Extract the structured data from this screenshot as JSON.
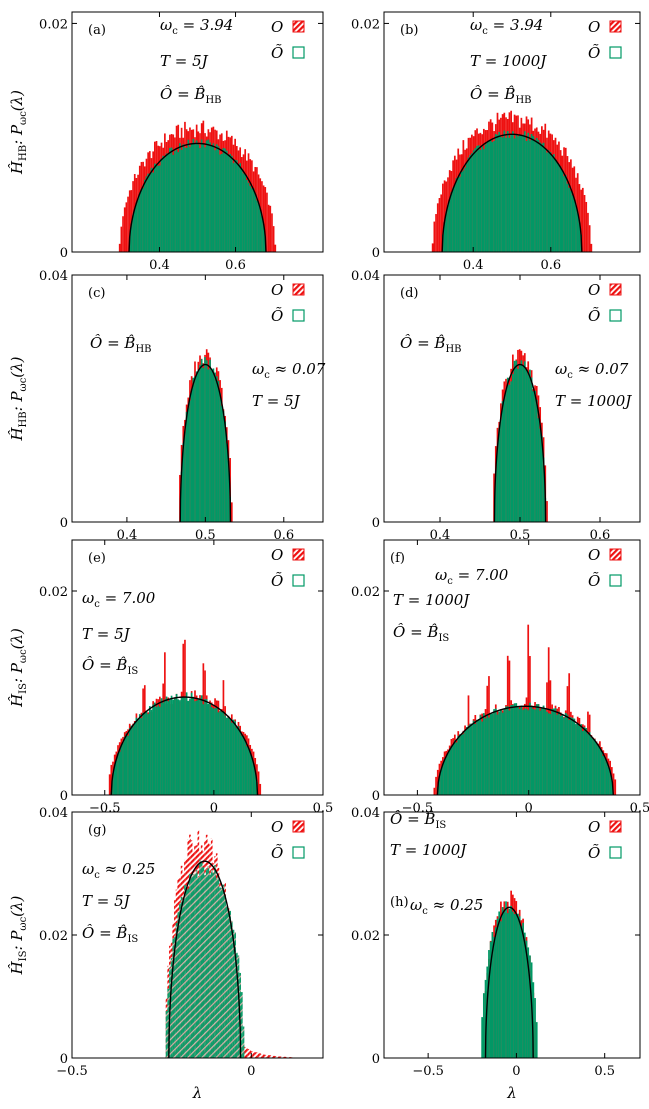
{
  "figure": {
    "colors": {
      "O": "#ee1111",
      "Otilde": "#009966",
      "curve": "#000000"
    },
    "row_ylabels": [
      "Ĥ_HB: P_ωc(λ)",
      "Ĥ_HB: P_ωc(λ)",
      "Ĥ_IS: P_ωc(λ)",
      "Ĥ_IS: P_ωc(λ)"
    ],
    "xlabel": "λ"
  },
  "chart_data": [
    {
      "type": "bar",
      "panel": "(a)",
      "annotations": [
        "ω_c = 3.94",
        "T = 5J",
        "Ô = B̂_HB"
      ],
      "legend": [
        "O",
        "Õ"
      ],
      "legend_position": "top-right",
      "xlim": [
        0.17,
        0.83
      ],
      "ylim": [
        0,
        0.021
      ],
      "xticks": [
        0.4,
        0.6
      ],
      "xtick_labels": [
        "0.4",
        "0.6"
      ],
      "yticks": [
        0,
        0.02
      ],
      "ytick_labels": [
        "0",
        "0.02"
      ],
      "series": [
        {
          "name": "O",
          "style": "histogram",
          "center": 0.5,
          "halfwidth": 0.205,
          "peak": 0.0108
        },
        {
          "name": "Õ",
          "style": "histogram",
          "center": 0.5,
          "halfwidth": 0.18,
          "peak": 0.0095
        },
        {
          "style": "curve",
          "center": 0.5,
          "halfwidth": 0.18,
          "peak": 0.0095
        }
      ]
    },
    {
      "type": "bar",
      "panel": "(b)",
      "annotations": [
        "ω_c = 3.94",
        "T = 1000J",
        "Ô = B̂_HB"
      ],
      "legend": [
        "O",
        "Õ"
      ],
      "legend_position": "top-right",
      "xlim": [
        0.17,
        0.83
      ],
      "ylim": [
        0,
        0.021
      ],
      "xticks": [
        0.4,
        0.6
      ],
      "xtick_labels": [
        "0.4",
        "0.6"
      ],
      "yticks": [
        0,
        0.02
      ],
      "ytick_labels": [
        "0",
        "0.02"
      ],
      "series": [
        {
          "name": "O",
          "style": "histogram",
          "center": 0.5,
          "halfwidth": 0.205,
          "peak": 0.0116
        },
        {
          "name": "Õ",
          "style": "histogram",
          "center": 0.5,
          "halfwidth": 0.18,
          "peak": 0.0103
        },
        {
          "style": "curve",
          "center": 0.5,
          "halfwidth": 0.18,
          "peak": 0.0103
        }
      ]
    },
    {
      "type": "bar",
      "panel": "(c)",
      "annotations": [
        "Ô = B̂_HB",
        "ω_c ≈ 0.07",
        "T = 5J"
      ],
      "legend": [
        "O",
        "Õ"
      ],
      "legend_position": "top-right",
      "xlim": [
        0.33,
        0.65
      ],
      "ylim": [
        0,
        0.04
      ],
      "xticks": [
        0.4,
        0.5,
        0.6
      ],
      "xtick_labels": [
        "0.4",
        "0.5",
        "0.6"
      ],
      "yticks": [
        0,
        0.04
      ],
      "ytick_labels": [
        "0",
        "0.04"
      ],
      "series": [
        {
          "name": "O",
          "style": "histogram",
          "center": 0.5,
          "halfwidth": 0.034,
          "peak": 0.0265
        },
        {
          "name": "Õ",
          "style": "histogram",
          "center": 0.5,
          "halfwidth": 0.032,
          "peak": 0.0255
        },
        {
          "style": "curve",
          "center": 0.5,
          "halfwidth": 0.032,
          "peak": 0.0255
        }
      ]
    },
    {
      "type": "bar",
      "panel": "(d)",
      "annotations": [
        "Ô = B̂_HB",
        "ω_c ≈ 0.07",
        "T = 1000J"
      ],
      "legend": [
        "O",
        "Õ"
      ],
      "legend_position": "top-right",
      "xlim": [
        0.33,
        0.65
      ],
      "ylim": [
        0,
        0.04
      ],
      "xticks": [
        0.4,
        0.5,
        0.6
      ],
      "xtick_labels": [
        "0.4",
        "0.5",
        "0.6"
      ],
      "yticks": [
        0,
        0.04
      ],
      "ytick_labels": [
        "0",
        "0.04"
      ],
      "series": [
        {
          "name": "O",
          "style": "histogram",
          "center": 0.5,
          "halfwidth": 0.034,
          "peak": 0.0265
        },
        {
          "name": "Õ",
          "style": "histogram",
          "center": 0.5,
          "halfwidth": 0.032,
          "peak": 0.0255
        },
        {
          "style": "curve",
          "center": 0.5,
          "halfwidth": 0.032,
          "peak": 0.0255
        }
      ]
    },
    {
      "type": "bar",
      "panel": "(e)",
      "annotations": [
        "ω_c = 7.00",
        "T = 5J",
        "Ô = B̂_IS"
      ],
      "legend": [
        "O",
        "Õ"
      ],
      "legend_position": "top-right",
      "xlim": [
        -0.65,
        0.5
      ],
      "ylim": [
        0,
        0.025
      ],
      "xticks": [
        -0.5,
        0,
        0.5
      ],
      "xtick_labels": [
        "−0.5",
        "0",
        "0.5"
      ],
      "yticks": [
        0,
        0.02
      ],
      "ytick_labels": [
        "0",
        "0.02"
      ],
      "series": [
        {
          "name": "O",
          "style": "histogram",
          "center": -0.135,
          "halfwidth": 0.35,
          "peak": 0.0097,
          "spikes": [
            [
              -0.32,
              0.011
            ],
            [
              -0.225,
              0.0135
            ],
            [
              -0.135,
              0.0165
            ],
            [
              -0.045,
              0.0135
            ],
            [
              0.045,
              0.011
            ]
          ]
        },
        {
          "name": "Õ",
          "style": "histogram",
          "center": -0.135,
          "halfwidth": 0.335,
          "peak": 0.0096
        },
        {
          "style": "curve",
          "center": -0.135,
          "halfwidth": 0.335,
          "peak": 0.0096
        }
      ]
    },
    {
      "type": "bar",
      "panel": "(f)",
      "annotations": [
        "ω_c = 7.00",
        "T = 1000J",
        "Ô = B̂_IS"
      ],
      "legend": [
        "O",
        "Õ"
      ],
      "legend_position": "top-right",
      "xlim": [
        -0.65,
        0.5
      ],
      "ylim": [
        0,
        0.025
      ],
      "xticks": [
        -0.5,
        0,
        0.5
      ],
      "xtick_labels": [
        "−0.5",
        "0",
        "0.5"
      ],
      "yticks": [
        0,
        0.02
      ],
      "ytick_labels": [
        "0",
        "0.02"
      ],
      "series": [
        {
          "name": "O",
          "style": "histogram",
          "center": -0.015,
          "halfwidth": 0.41,
          "peak": 0.0088,
          "spikes": [
            [
              -0.36,
              0.0045
            ],
            [
              -0.27,
              0.0095
            ],
            [
              -0.18,
              0.0125
            ],
            [
              -0.09,
              0.0145
            ],
            [
              0.0,
              0.016
            ],
            [
              0.09,
              0.0145
            ],
            [
              0.18,
              0.012
            ],
            [
              0.27,
              0.009
            ]
          ]
        },
        {
          "name": "Õ",
          "style": "histogram",
          "center": -0.015,
          "halfwidth": 0.395,
          "peak": 0.0087
        },
        {
          "style": "curve",
          "center": -0.015,
          "halfwidth": 0.395,
          "peak": 0.0087
        }
      ]
    },
    {
      "type": "bar",
      "panel": "(g)",
      "annotations": [
        "ω_c ≈ 0.25",
        "T = 5J",
        "Ô = B̂_IS"
      ],
      "legend": [
        "O",
        "Õ"
      ],
      "legend_position": "top-right",
      "xlim": [
        -0.5,
        0.2
      ],
      "ylim": [
        0,
        0.04
      ],
      "xticks": [
        -0.5,
        0
      ],
      "xtick_labels": [
        "−0.5",
        "0"
      ],
      "yticks": [
        0,
        0.02,
        0.04
      ],
      "ytick_labels": [
        "0",
        "0.02",
        "0.04"
      ],
      "series": [
        {
          "name": "O",
          "style": "histogram",
          "center": -0.14,
          "halfwidth": 0.1,
          "peak": 0.036,
          "tail_to": 0.12
        },
        {
          "name": "Õ",
          "style": "histogram",
          "center": -0.13,
          "halfwidth": 0.11,
          "peak": 0.031
        },
        {
          "style": "curve",
          "center": -0.13,
          "halfwidth": 0.1,
          "peak": 0.032
        }
      ]
    },
    {
      "type": "bar",
      "panel": "(h)",
      "annotations": [
        "Ô = B̂_IS",
        "T = 1000J",
        "ω_c ≈ 0.25"
      ],
      "legend": [
        "O",
        "Õ"
      ],
      "legend_position": "top-right",
      "xlim": [
        -0.75,
        0.7
      ],
      "ylim": [
        0,
        0.04
      ],
      "xticks": [
        -0.5,
        0,
        0.5
      ],
      "xtick_labels": [
        "−0.5",
        "0",
        "0.5"
      ],
      "yticks": [
        0,
        0.02,
        0.04
      ],
      "ytick_labels": [
        "0",
        "0.02",
        "0.04"
      ],
      "series": [
        {
          "name": "O",
          "style": "histogram",
          "center": -0.04,
          "halfwidth": 0.15,
          "peak": 0.0255
        },
        {
          "name": "Õ",
          "style": "histogram",
          "center": -0.04,
          "halfwidth": 0.16,
          "peak": 0.0245
        },
        {
          "style": "curve",
          "center": -0.04,
          "halfwidth": 0.135,
          "peak": 0.0245
        }
      ]
    }
  ]
}
